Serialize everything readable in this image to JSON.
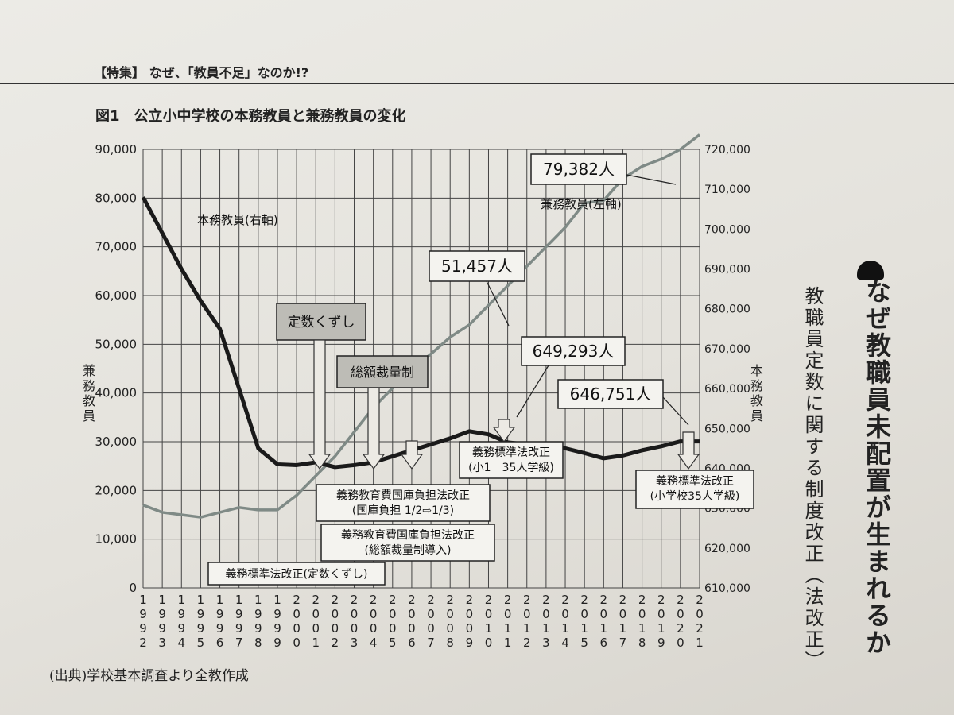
{
  "page": {
    "header": "【特集】 なぜ、「教員不足」なのか!?",
    "source": "(出典)学校基本調査より全教作成",
    "side_heading": "なぜ教職員未配置が生まれるか",
    "side_subheading": "教職員定数に関する制度改正（法改正）"
  },
  "chart_data": {
    "type": "line",
    "title": "図1　公立小中学校の本務教員と兼務教員の変化",
    "x": [
      "1992",
      "1993",
      "1994",
      "1995",
      "1996",
      "1997",
      "1998",
      "1999",
      "2000",
      "2001",
      "2002",
      "2003",
      "2004",
      "2005",
      "2006",
      "2007",
      "2008",
      "2009",
      "2010",
      "2011",
      "2012",
      "2013",
      "2014",
      "2015",
      "2016",
      "2017",
      "2018",
      "2019",
      "2020",
      "2021"
    ],
    "yaxis_left": {
      "label": "兼務教員",
      "range": [
        0,
        90000
      ],
      "ticks": [
        "0",
        "10,000",
        "20,000",
        "30,000",
        "40,000",
        "50,000",
        "60,000",
        "70,000",
        "80,000",
        "90,000"
      ]
    },
    "yaxis_right": {
      "label": "本務教員",
      "range": [
        610000,
        720000
      ],
      "ticks": [
        "610,000",
        "620,000",
        "630,000",
        "640,000",
        "650,000",
        "660,000",
        "670,000",
        "680,000",
        "690,000",
        "700,000",
        "710,000",
        "720,000"
      ]
    },
    "series": [
      {
        "name": "兼務教員(左軸)",
        "axis": "left",
        "color": "#7f8a86",
        "values": [
          17000,
          15500,
          15000,
          14500,
          15500,
          16500,
          16000,
          16000,
          19000,
          23000,
          27000,
          32000,
          37000,
          41000,
          45000,
          48000,
          51457,
          54000,
          58000,
          62000,
          66000,
          70000,
          74000,
          79000,
          79500,
          84000,
          86500,
          88000,
          90000,
          93000
        ]
      },
      {
        "name": "本務教員(右軸)",
        "axis": "right",
        "color": "#1a1a1a",
        "values": [
          708000,
          699000,
          690000,
          682000,
          675000,
          660000,
          645000,
          641000,
          640800,
          641500,
          640300,
          640800,
          641500,
          643000,
          644500,
          646000,
          647500,
          649293,
          648500,
          646500,
          646000,
          645200,
          645000,
          643800,
          642500,
          643200,
          644500,
          645500,
          646751,
          646751
        ]
      }
    ],
    "callouts": [
      "79,382人",
      "51,457人",
      "649,293人",
      "646,751人"
    ],
    "events": [
      {
        "label": "定数くずし"
      },
      {
        "label": "総額裁量制"
      },
      {
        "label": "義務標準法改正(定数くずし)"
      },
      {
        "label": "義務教育費国庫負担法改正",
        "sub": "(国庫負担 1/2⇨1/3)"
      },
      {
        "label": "義務教育費国庫負担法改正",
        "sub": "(総額裁量制導入)"
      },
      {
        "label": "義務標準法改正",
        "sub": "(小1　35人学級)"
      },
      {
        "label": "義務標準法改正",
        "sub": "(小学校35人学級)"
      }
    ],
    "grid": true
  }
}
